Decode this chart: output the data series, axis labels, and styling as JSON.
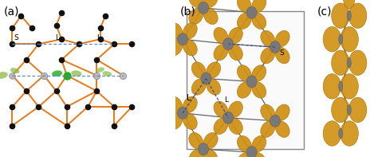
{
  "fig_width": 4.74,
  "fig_height": 1.97,
  "dpi": 100,
  "bg_color": "#ffffff",
  "panel_labels": [
    "(a)",
    "(b)",
    "(c)"
  ],
  "panel_label_fontsize": 10,
  "orange_color": "#E8791A",
  "black_color": "#111111",
  "blue_dashed": "#5588CC",
  "green_dark": "#22AA22",
  "green_light": "#88BB44",
  "gold_color": "#C8900A",
  "gold_face": "#D4A017",
  "silver_color": "#8A8A8A",
  "text_fontsize": 6.5
}
